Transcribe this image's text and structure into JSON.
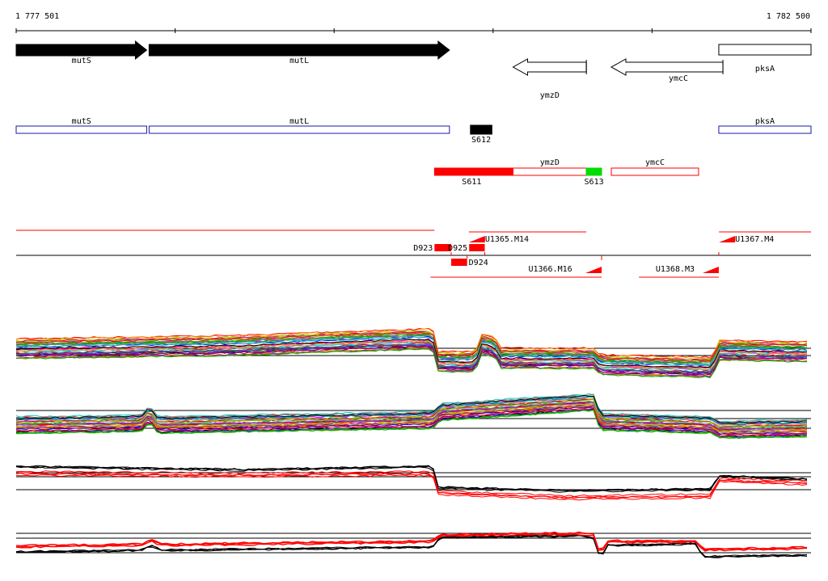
{
  "ruler": {
    "start_label": "1 777 501",
    "end_label": "1 782 500",
    "start": 1777501,
    "end": 1782500
  },
  "genes": [
    {
      "name": "mutS",
      "strand": "+",
      "start": 1777501,
      "end": 1778322,
      "style": "filled"
    },
    {
      "name": "mutL",
      "strand": "+",
      "start": 1778337,
      "end": 1780226,
      "style": "filled"
    },
    {
      "name": "ymzD",
      "strand": "-",
      "start": 1780626,
      "end": 1781087,
      "style": "outline"
    },
    {
      "name": "ymcC",
      "strand": "-",
      "start": 1781244,
      "end": 1781946,
      "style": "outline"
    },
    {
      "name": "pksA",
      "strand": "+",
      "start": 1781920,
      "end": 1782500,
      "style": "box"
    }
  ],
  "annotations_blue": [
    {
      "name": "mutS",
      "start": 1777501,
      "end": 1778322
    },
    {
      "name": "mutL",
      "start": 1778337,
      "end": 1780226
    },
    {
      "name": "pksA",
      "start": 1781920,
      "end": 1782500
    }
  ],
  "segments": [
    {
      "id": "S612",
      "start": 1780358,
      "end": 1780493,
      "color": "#000000",
      "row": 1
    },
    {
      "id": "S611",
      "start": 1780132,
      "end": 1780626,
      "color": "#ff0000",
      "row": 2
    },
    {
      "id": "S613",
      "start": 1781087,
      "end": 1781183,
      "color": "#00dd00",
      "row": 2
    }
  ],
  "red_boxes": [
    {
      "name": "ymzD",
      "start": 1780626,
      "end": 1781087
    },
    {
      "name": "ymcC",
      "start": 1781244,
      "end": 1781793
    }
  ],
  "features": [
    {
      "id": "D923",
      "start": 1780132,
      "end": 1780237,
      "strand": "+"
    },
    {
      "id": "D925",
      "start": 1780350,
      "end": 1780448,
      "strand": "+"
    },
    {
      "id": "D924",
      "start": 1780237,
      "end": 1780337,
      "strand": "-"
    },
    {
      "id": "U1365.M14",
      "start": 1780348,
      "end": 1781087,
      "strand": "+"
    },
    {
      "id": "U1366.M16",
      "start": 1780107,
      "end": 1781183,
      "strand": "-"
    },
    {
      "id": "U1367.M4",
      "start": 1781921,
      "end": 1782500,
      "strand": "+"
    },
    {
      "id": "U1368.M3",
      "start": 1781418,
      "end": 1781920,
      "strand": "-"
    }
  ],
  "tracks": [
    {
      "name": "expression-panel-1",
      "multicolor": true
    },
    {
      "name": "expression-panel-2",
      "multicolor": true
    },
    {
      "name": "expression-panel-3",
      "multicolor": false
    },
    {
      "name": "expression-panel-4",
      "multicolor": false
    }
  ],
  "colors": {
    "gene_fill": "#000000",
    "blue_box": "#1a1aa6",
    "red": "#ff0000",
    "green": "#00dd00",
    "axis": "#000000"
  }
}
